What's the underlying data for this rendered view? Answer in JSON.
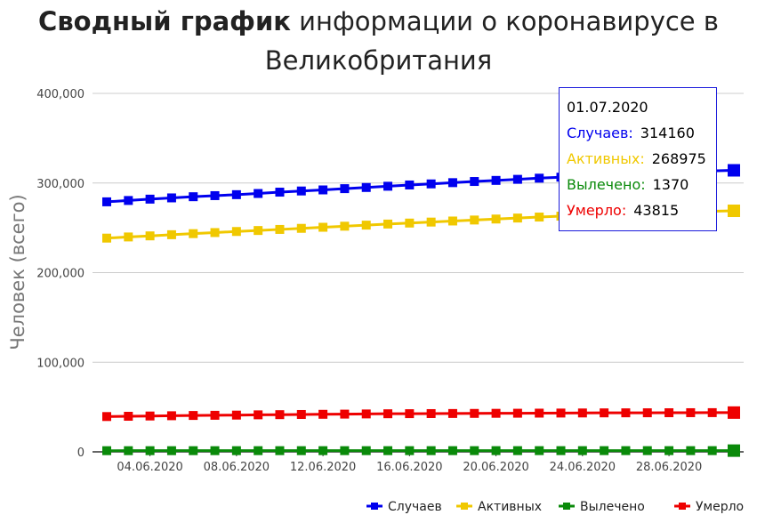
{
  "title": {
    "bold": "Сводный график",
    "rest_line1": " информации о коронавирусе в",
    "line2": "Великобритания"
  },
  "chart_data": {
    "type": "line",
    "ylabel": "Человек (всего)",
    "xlabel": "",
    "ylim": [
      0,
      400000
    ],
    "y_ticks": [
      0,
      100000,
      200000,
      300000,
      400000
    ],
    "y_tick_labels": [
      "0",
      "100,000",
      "200,000",
      "300,000",
      "400,000"
    ],
    "x_tick_labels": [
      "04.06.2020",
      "08.06.2020",
      "12.06.2020",
      "16.06.2020",
      "20.06.2020",
      "24.06.2020",
      "28.06.2020"
    ],
    "x": [
      "02.06.2020",
      "03.06.2020",
      "04.06.2020",
      "05.06.2020",
      "06.06.2020",
      "07.06.2020",
      "08.06.2020",
      "09.06.2020",
      "10.06.2020",
      "11.06.2020",
      "12.06.2020",
      "13.06.2020",
      "14.06.2020",
      "15.06.2020",
      "16.06.2020",
      "17.06.2020",
      "18.06.2020",
      "19.06.2020",
      "20.06.2020",
      "21.06.2020",
      "22.06.2020",
      "23.06.2020",
      "24.06.2020",
      "25.06.2020",
      "26.06.2020",
      "27.06.2020",
      "28.06.2020",
      "29.06.2020",
      "30.06.2020",
      "01.07.2020"
    ],
    "grid": true,
    "legend_position": "bottom-right",
    "series": [
      {
        "name": "Случаев",
        "color": "#0000ee",
        "values": [
          279000,
          280500,
          282000,
          283400,
          284700,
          285900,
          287000,
          288300,
          289800,
          291100,
          292300,
          293700,
          295000,
          296400,
          297800,
          299000,
          300400,
          301700,
          302900,
          304100,
          305400,
          306500,
          307700,
          308800,
          309900,
          311000,
          312100,
          312900,
          313500,
          314160
        ]
      },
      {
        "name": "Активных",
        "color": "#f0c800",
        "values": [
          238500,
          239800,
          241000,
          242300,
          243500,
          244700,
          245900,
          247000,
          248200,
          249400,
          250600,
          251800,
          253000,
          254200,
          255300,
          256400,
          257600,
          258700,
          259800,
          260900,
          262000,
          263000,
          264000,
          265000,
          266000,
          266900,
          267500,
          268000,
          268500,
          268975
        ]
      },
      {
        "name": "Вылечено",
        "color": "#0a8a0a",
        "values": [
          1300,
          1305,
          1310,
          1315,
          1320,
          1320,
          1325,
          1330,
          1330,
          1335,
          1335,
          1340,
          1340,
          1345,
          1345,
          1350,
          1350,
          1350,
          1355,
          1355,
          1360,
          1360,
          1360,
          1365,
          1365,
          1365,
          1368,
          1368,
          1370,
          1370
        ]
      },
      {
        "name": "Умерло",
        "color": "#ee0000",
        "values": [
          39400,
          39700,
          40000,
          40300,
          40600,
          40800,
          41000,
          41300,
          41500,
          41700,
          41900,
          42100,
          42300,
          42500,
          42600,
          42700,
          42800,
          42900,
          43000,
          43100,
          43200,
          43300,
          43400,
          43500,
          43550,
          43600,
          43650,
          43700,
          43750,
          43815
        ]
      }
    ]
  },
  "tooltip": {
    "date": "01.07.2020",
    "rows": [
      {
        "label": "Случаев:",
        "value": "314160",
        "color": "#0000ee"
      },
      {
        "label": "Активных:",
        "value": "268975",
        "color": "#f0c800"
      },
      {
        "label": "Вылечено:",
        "value": "1370",
        "color": "#0a8a0a"
      },
      {
        "label": "Умерло:",
        "value": "43815",
        "color": "#ee0000"
      }
    ]
  }
}
